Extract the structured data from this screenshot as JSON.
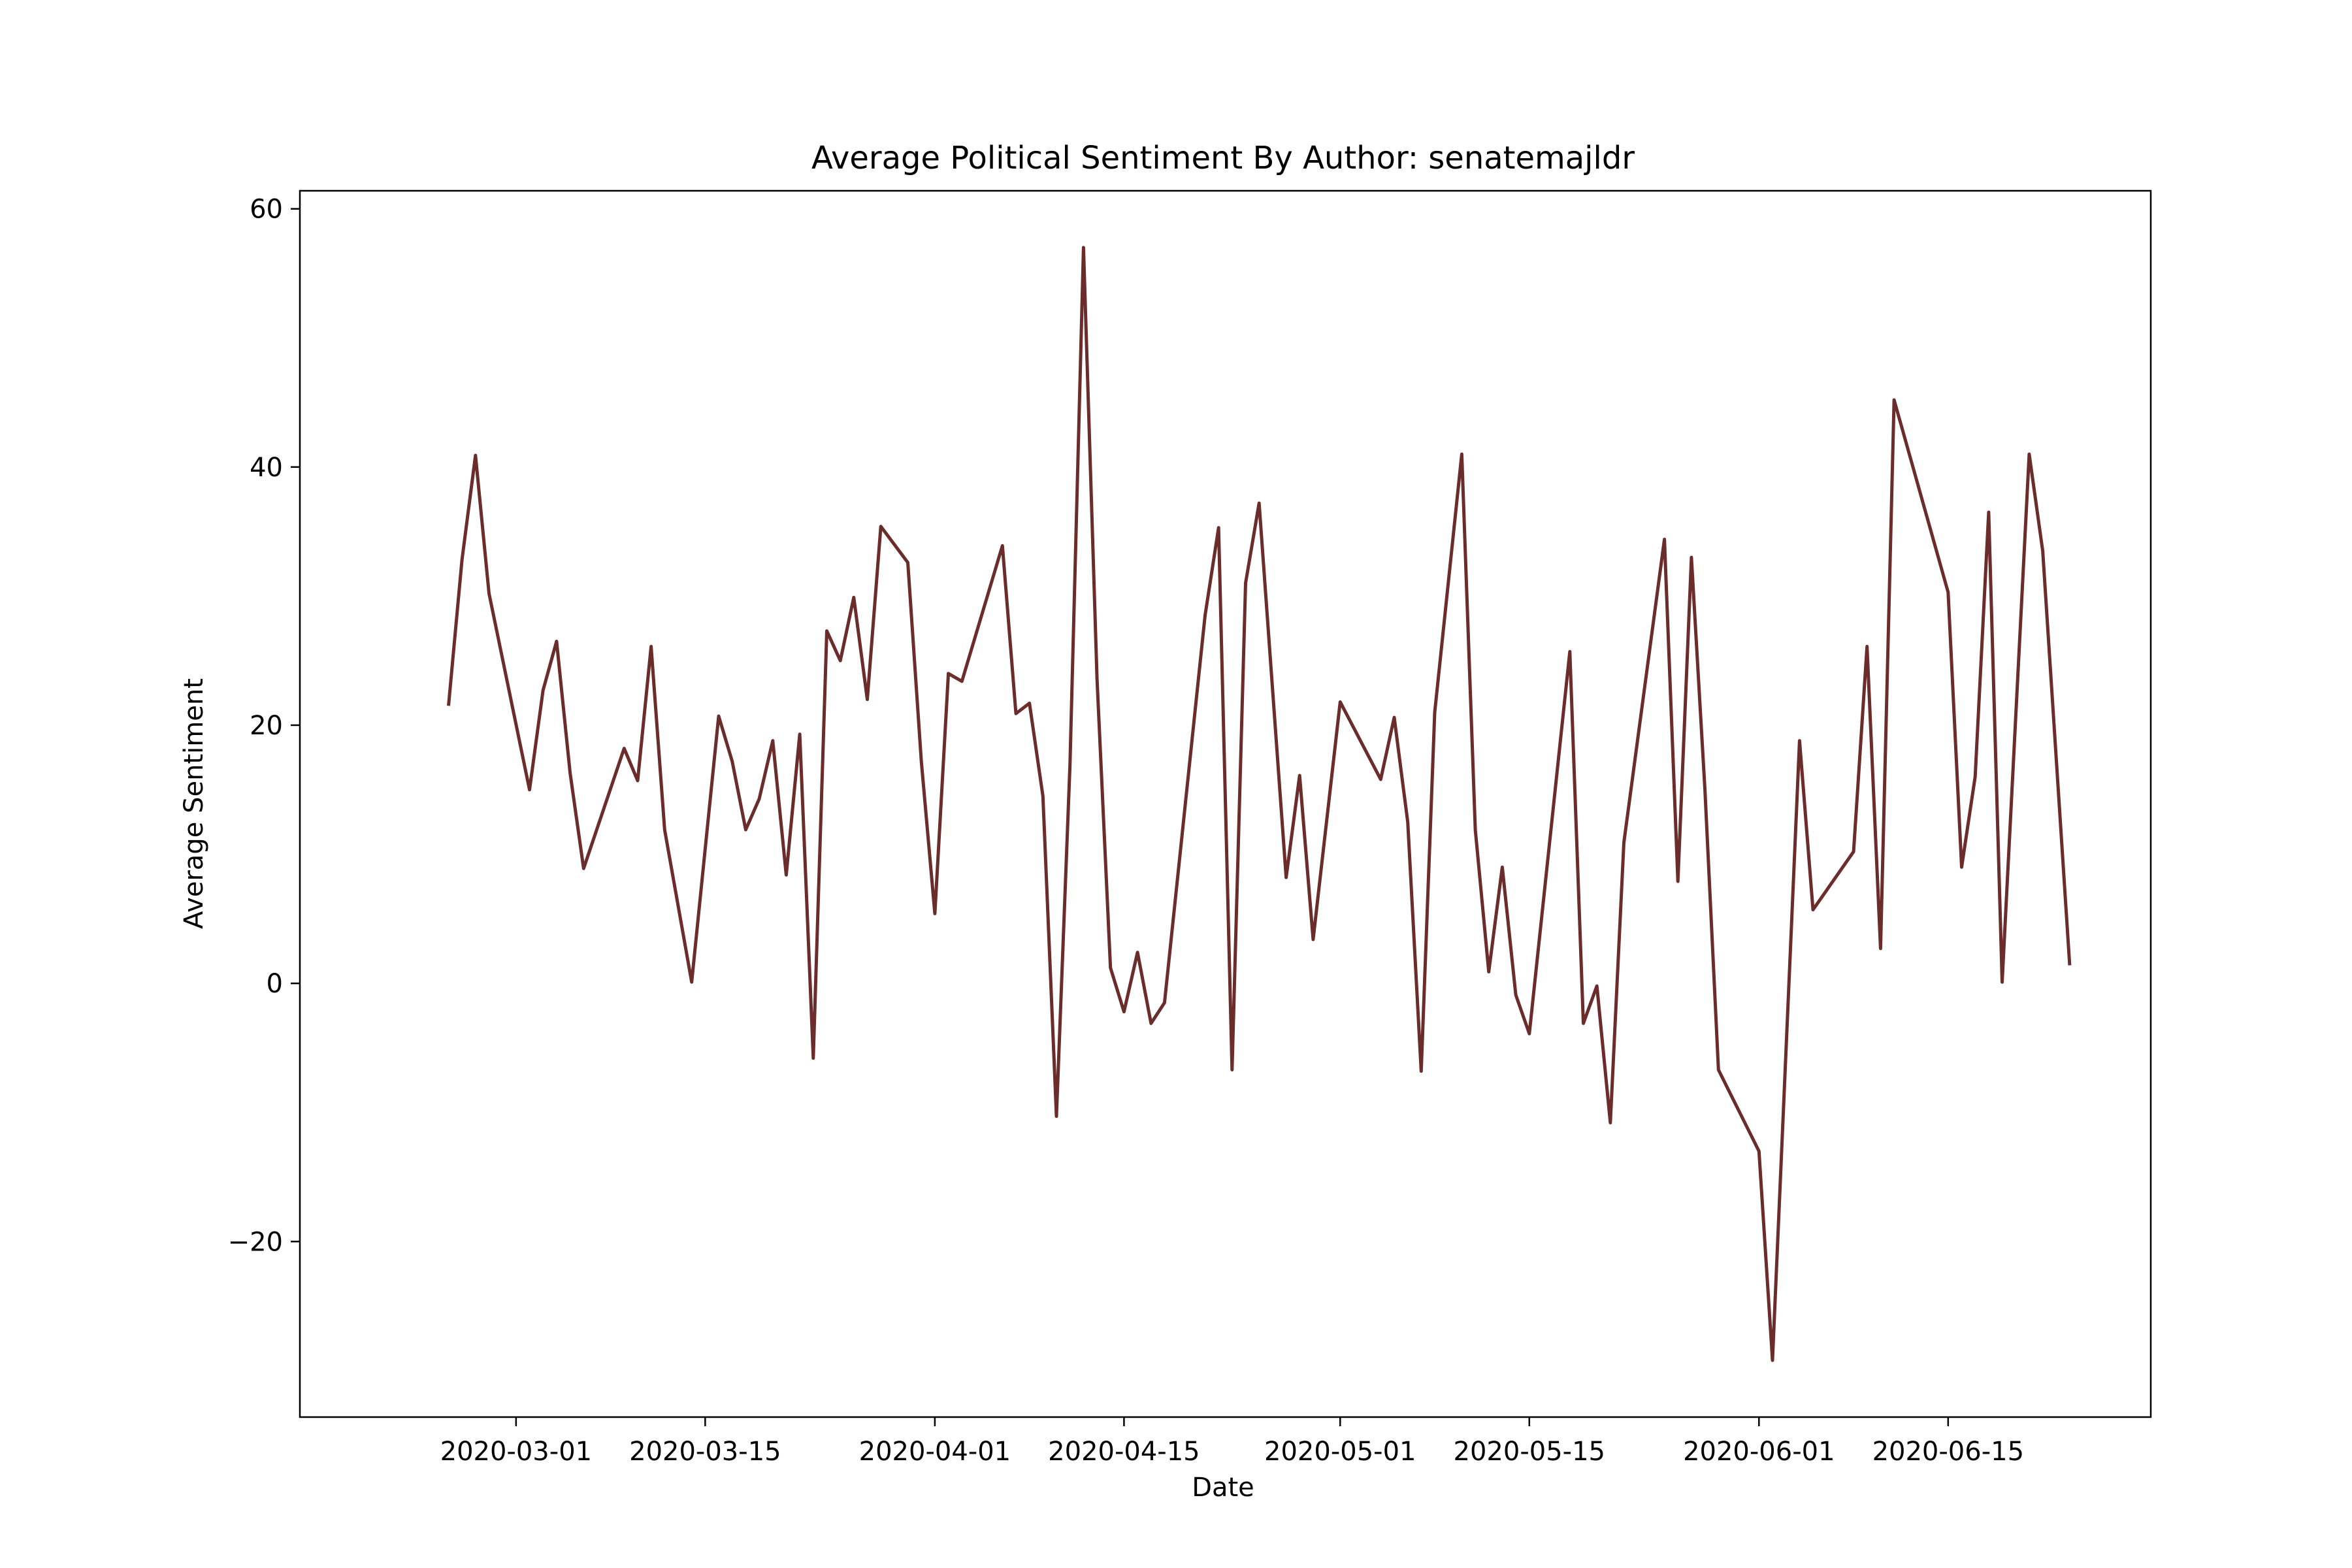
{
  "chart_data": {
    "type": "line",
    "title": "Average Political Sentiment By Author: senatemajldr",
    "xlabel": "Date",
    "ylabel": "Average Sentiment",
    "xlim": [
      "2020-02-14",
      "2020-06-30"
    ],
    "ylim": [
      -33.6,
      61.4
    ],
    "x_ticks": [
      "2020-03-01",
      "2020-03-15",
      "2020-04-01",
      "2020-04-15",
      "2020-05-01",
      "2020-05-15",
      "2020-06-01",
      "2020-06-15"
    ],
    "y_ticks": [
      60,
      40,
      20,
      0,
      -20
    ],
    "y_tick_labels": [
      "60",
      "40",
      "20",
      "0",
      "−20"
    ],
    "grid": false,
    "line_color": "#6b2c2c",
    "series": [
      {
        "x": [
          "2020-02-25",
          "2020-02-26",
          "2020-02-27",
          "2020-02-28",
          "2020-03-02",
          "2020-03-03",
          "2020-03-04",
          "2020-03-05",
          "2020-03-06",
          "2020-03-09",
          "2020-03-10",
          "2020-03-11",
          "2020-03-12",
          "2020-03-14",
          "2020-03-16",
          "2020-03-17",
          "2020-03-18",
          "2020-03-19",
          "2020-03-20",
          "2020-03-21",
          "2020-03-22",
          "2020-03-23",
          "2020-03-24",
          "2020-03-25",
          "2020-03-26",
          "2020-03-27",
          "2020-03-28",
          "2020-03-30",
          "2020-03-31",
          "2020-04-01",
          "2020-04-02",
          "2020-04-03",
          "2020-04-06",
          "2020-04-07",
          "2020-04-08",
          "2020-04-09",
          "2020-04-10",
          "2020-04-11",
          "2020-04-12",
          "2020-04-13",
          "2020-04-14",
          "2020-04-15",
          "2020-04-16",
          "2020-04-17",
          "2020-04-18",
          "2020-04-21",
          "2020-04-22",
          "2020-04-23",
          "2020-04-24",
          "2020-04-25",
          "2020-04-27",
          "2020-04-28",
          "2020-04-29",
          "2020-05-01",
          "2020-05-04",
          "2020-05-05",
          "2020-05-06",
          "2020-05-07",
          "2020-05-08",
          "2020-05-10",
          "2020-05-11",
          "2020-05-12",
          "2020-05-13",
          "2020-05-14",
          "2020-05-15",
          "2020-05-18",
          "2020-05-19",
          "2020-05-20",
          "2020-05-21",
          "2020-05-22",
          "2020-05-25",
          "2020-05-26",
          "2020-05-27",
          "2020-05-28",
          "2020-05-29",
          "2020-06-01",
          "2020-06-02",
          "2020-06-04",
          "2020-06-05",
          "2020-06-08",
          "2020-06-09",
          "2020-06-10",
          "2020-06-11",
          "2020-06-15",
          "2020-06-16",
          "2020-06-17",
          "2020-06-18",
          "2020-06-19",
          "2020-06-21",
          "2020-06-22",
          "2020-06-24"
        ],
        "y": [
          21.5,
          32.8,
          40.9,
          30.2,
          15.0,
          22.7,
          26.5,
          16.3,
          8.9,
          18.2,
          15.7,
          26.1,
          11.9,
          0.1,
          20.7,
          17.2,
          11.9,
          14.3,
          18.8,
          8.4,
          19.3,
          -5.8,
          27.3,
          25.0,
          29.9,
          22.0,
          35.4,
          32.6,
          17.2,
          5.4,
          24.0,
          23.4,
          33.9,
          20.9,
          21.7,
          14.5,
          -10.3,
          16.9,
          57.0,
          23.6,
          1.2,
          -2.2,
          2.4,
          -3.1,
          -1.5,
          28.5,
          35.3,
          -6.7,
          31.0,
          37.2,
          8.2,
          16.1,
          3.4,
          21.8,
          15.8,
          20.6,
          12.5,
          -6.8,
          21.0,
          41.0,
          11.9,
          0.9,
          9.0,
          -0.9,
          -3.9,
          25.7,
          -3.1,
          -0.2,
          -10.8,
          10.9,
          34.4,
          7.9,
          33.0,
          15.0,
          -6.7,
          -13.0,
          -29.2,
          18.8,
          5.7,
          10.2,
          26.1,
          2.7,
          45.2,
          30.3,
          9.0,
          16.0,
          36.5,
          0.1,
          41.0,
          33.5,
          1.4
        ]
      }
    ]
  }
}
